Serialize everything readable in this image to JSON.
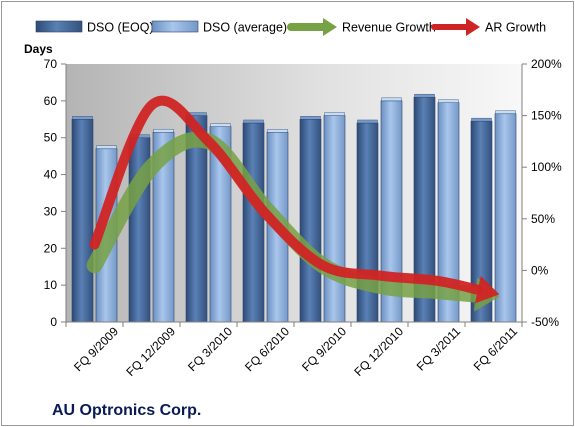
{
  "chart_data": {
    "type": "bar",
    "title": "AU Optronics Corp.",
    "y_unit_label": "Days",
    "categories": [
      "FQ 9/2009",
      "FQ 12/2009",
      "FQ 3/2010",
      "FQ 6/2010",
      "FQ 9/2010",
      "FQ 12/2010",
      "FQ 3/2011",
      "FQ 6/2011"
    ],
    "y_left": {
      "min": 0,
      "max": 70,
      "ticks": [
        0,
        10,
        20,
        30,
        40,
        50,
        60,
        70
      ]
    },
    "y_right": {
      "min": -50,
      "max": 200,
      "ticks": [
        "-50%",
        "0%",
        "50%",
        "100%",
        "150%",
        "200%"
      ]
    },
    "series": [
      {
        "name": "DSO (EOQ)",
        "type": "bar",
        "axis": "left",
        "color": "#4a6fa5",
        "values": [
          55,
          50,
          56,
          54,
          55,
          54,
          61,
          54.5
        ]
      },
      {
        "name": "DSO (average)",
        "type": "bar",
        "axis": "left",
        "color": "#8db3e2",
        "values": [
          47,
          51.5,
          53,
          51.5,
          56,
          60,
          59.5,
          56.5
        ]
      },
      {
        "name": "Revenue Growth",
        "type": "line-arrow",
        "axis": "right",
        "color": "#77a145",
        "values": [
          5,
          100,
          125,
          60,
          5,
          -15,
          -20,
          -25
        ]
      },
      {
        "name": "AR Growth",
        "type": "line-arrow",
        "axis": "right",
        "color": "#d02424",
        "values": [
          25,
          160,
          125,
          55,
          5,
          -5,
          -10,
          -22
        ]
      }
    ],
    "grid": false,
    "legend_position": "top"
  }
}
